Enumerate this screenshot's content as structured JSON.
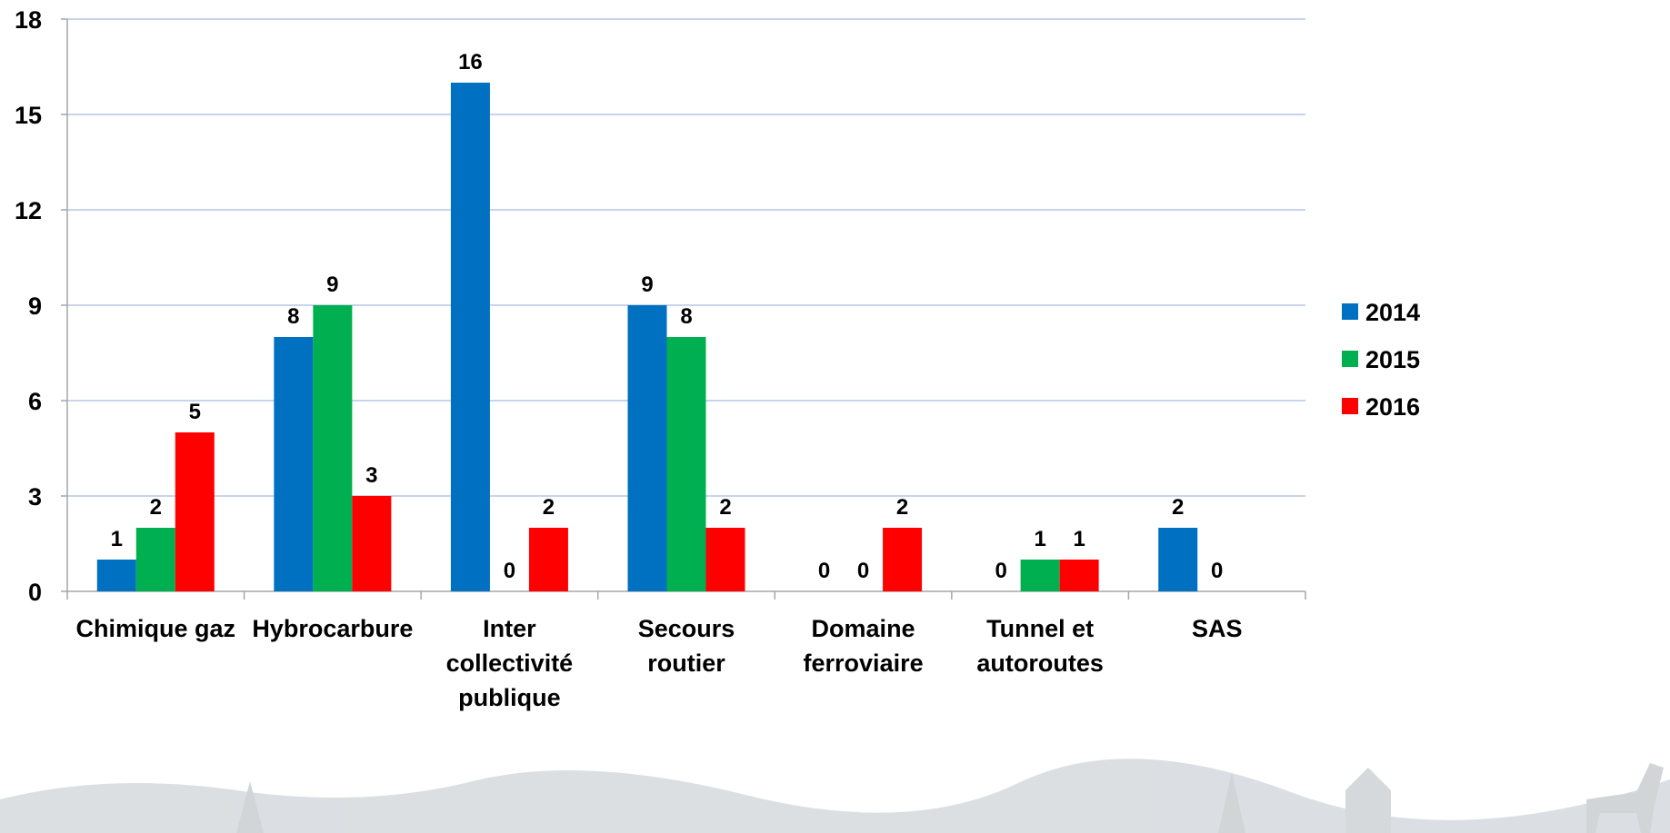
{
  "chart_data": {
    "type": "bar",
    "categories": [
      [
        "Chimique gaz"
      ],
      [
        "Hybrocarbure"
      ],
      [
        "Inter",
        "collectivité",
        "publique"
      ],
      [
        "Secours",
        "routier"
      ],
      [
        "Domaine",
        "ferroviaire"
      ],
      [
        "Tunnel et",
        "autoroutes"
      ],
      [
        "SAS"
      ]
    ],
    "series": [
      {
        "name": "2014",
        "color": "#0070C0",
        "values": [
          1,
          8,
          16,
          9,
          0,
          0,
          2
        ]
      },
      {
        "name": "2015",
        "color": "#00B050",
        "values": [
          2,
          9,
          0,
          8,
          0,
          1,
          0
        ]
      },
      {
        "name": "2016",
        "color": "#FF0000",
        "values": [
          5,
          3,
          2,
          2,
          2,
          1,
          0
        ]
      }
    ],
    "value_labels": [
      [
        "1",
        "8",
        "16",
        "9",
        "0",
        "0",
        "2"
      ],
      [
        "2",
        "9",
        "0",
        "8",
        "0",
        "1",
        "0"
      ],
      [
        "5",
        "3",
        "2",
        "2",
        "2",
        "1",
        ""
      ]
    ],
    "ylim": [
      0,
      18
    ],
    "yticks": [
      "0",
      "3",
      "6",
      "9",
      "12",
      "15",
      "18"
    ],
    "grid": true,
    "legend_position": "right",
    "title": "",
    "xlabel": "",
    "ylabel": ""
  },
  "colors": {
    "grid": "#B4C7E7",
    "axis": "#A6A6A6"
  }
}
